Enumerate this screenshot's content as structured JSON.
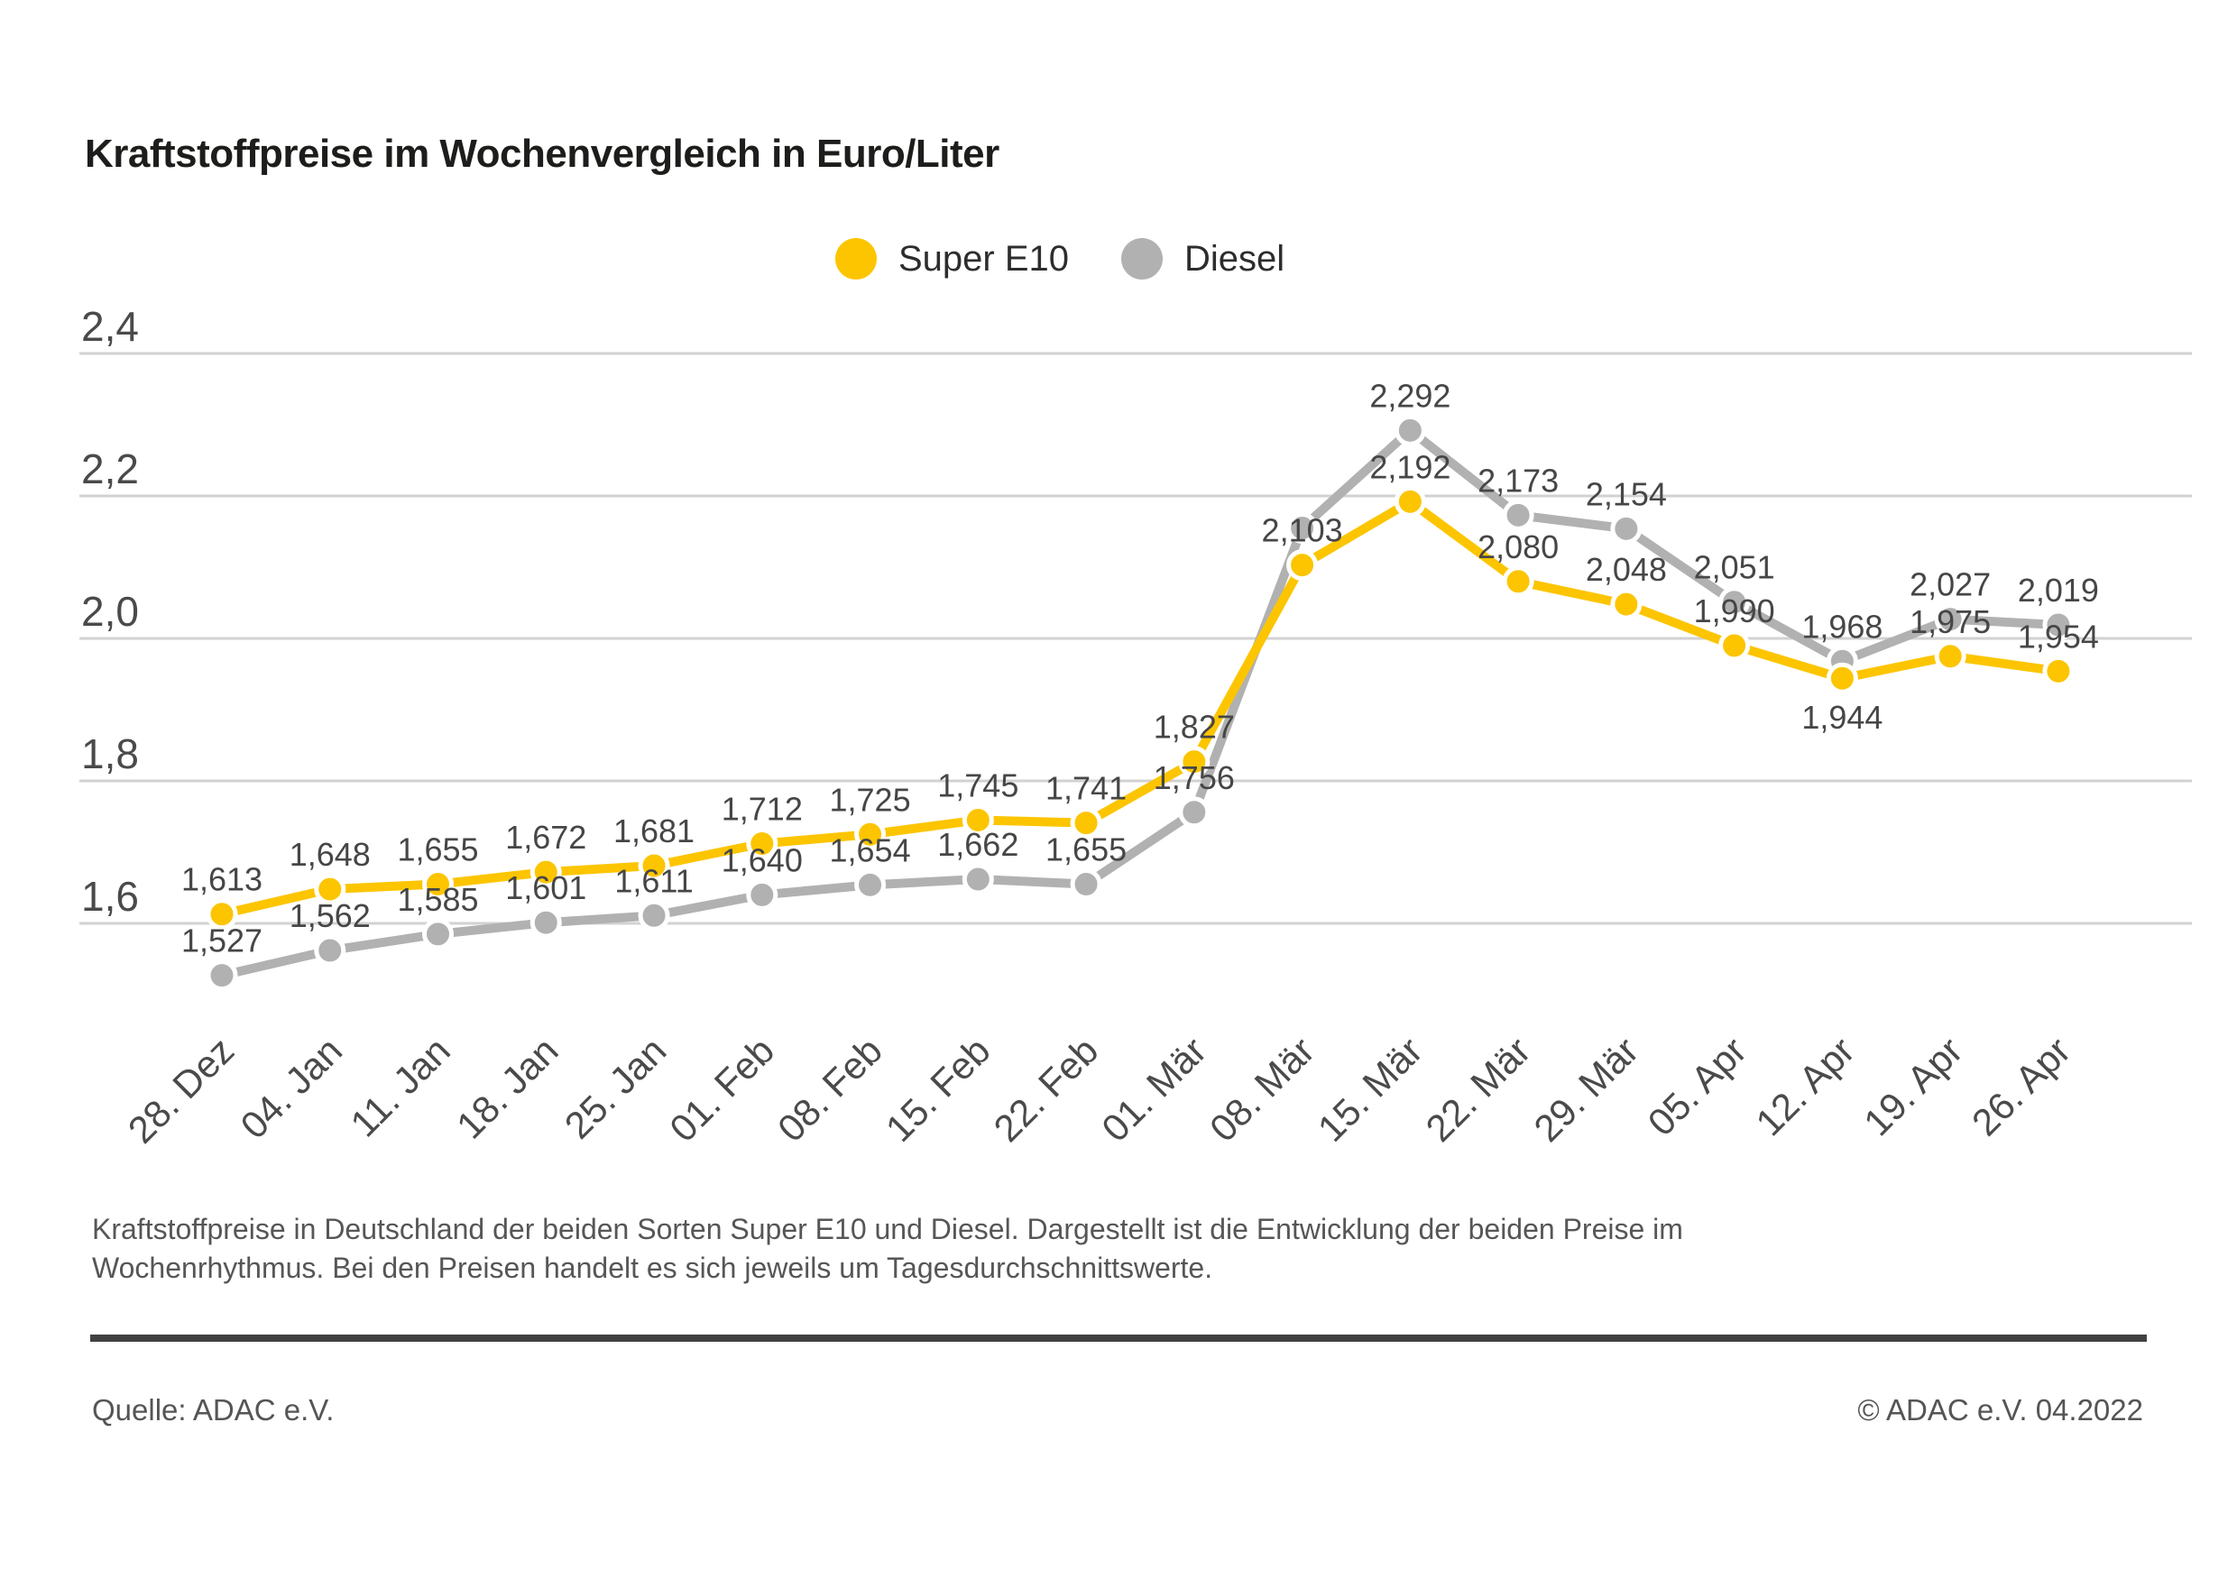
{
  "title": "Kraftstoffpreise im Wochenvergleich in Euro/Liter",
  "legend": [
    {
      "label": "Super E10",
      "color": "#FCC500"
    },
    {
      "label": "Diesel",
      "color": "#B1B1B1"
    }
  ],
  "chart_data": {
    "type": "line",
    "title": "Kraftstoffpreise im Wochenvergleich in Euro/Liter",
    "unit": "Euro/Liter",
    "grid": true,
    "legend_position": "top-center",
    "categories": [
      "28. Dez",
      "04. Jan",
      "11. Jan",
      "18. Jan",
      "25. Jan",
      "01. Feb",
      "08. Feb",
      "15. Feb",
      "22. Feb",
      "01. Mär",
      "08. Mär",
      "15. Mär",
      "22. Mär",
      "29. Mär",
      "05. Apr",
      "12. Apr",
      "19. Apr",
      "26. Apr"
    ],
    "y_axis": {
      "tick_labels": [
        "2,4",
        "2,2",
        "2,0",
        "1,8",
        "1,6"
      ],
      "tick_values": [
        2.4,
        2.2,
        2.0,
        1.8,
        1.6
      ],
      "min": 1.5,
      "max": 2.45
    },
    "series": [
      {
        "name": "Diesel",
        "color": "#B1B1B1",
        "values": [
          1.527,
          1.562,
          1.585,
          1.601,
          1.611,
          1.64,
          1.654,
          1.662,
          1.655,
          1.756,
          2.155,
          2.292,
          2.173,
          2.154,
          2.051,
          1.968,
          2.027,
          2.019
        ],
        "labels": [
          "1,527",
          "1,562",
          "1,585",
          "1,601",
          "1,611",
          "1,640",
          "1,654",
          "1,662",
          "1,655",
          "1,756",
          null,
          "2,292",
          "2,173",
          "2,154",
          "2,051",
          "1,968",
          "2,027",
          "2,019"
        ]
      },
      {
        "name": "Super E10",
        "color": "#FCC500",
        "values": [
          1.613,
          1.648,
          1.655,
          1.672,
          1.681,
          1.712,
          1.725,
          1.745,
          1.741,
          1.827,
          2.103,
          2.192,
          2.08,
          2.048,
          1.99,
          1.944,
          1.975,
          1.954
        ],
        "labels": [
          "1,613",
          "1,648",
          "1,655",
          "1,672",
          "1,681",
          "1,712",
          "1,725",
          "1,745",
          "1,741",
          "1,827",
          "2,103",
          "2,192",
          "2,080",
          "2,048",
          "1,990",
          "1,944",
          "1,975",
          "1,954"
        ]
      }
    ]
  },
  "footer": {
    "description_lines": [
      "Kraftstoffpreise in Deutschland der beiden Sorten Super E10 und Diesel. Dargestellt ist die Entwicklung der beiden Preise im",
      "Wochenrhythmus. Bei den Preisen handelt es sich jeweils um Tagesdurchschnittswerte."
    ],
    "source": "Quelle: ADAC e.V.",
    "copyright": "© ADAC e.V. 04.2022"
  }
}
